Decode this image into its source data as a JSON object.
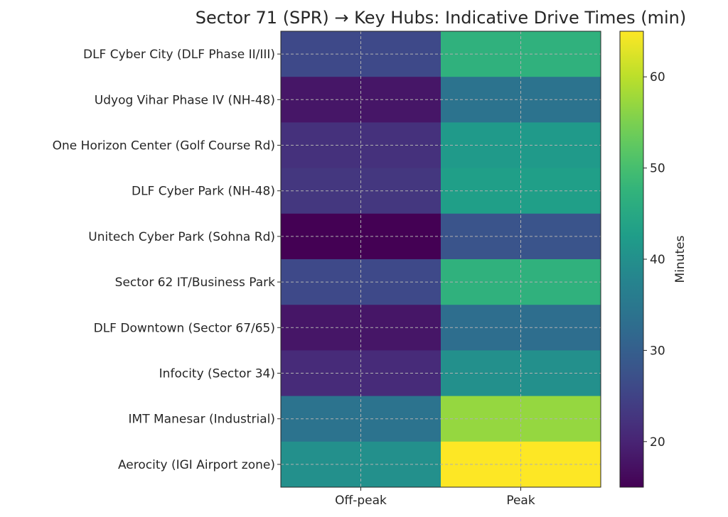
{
  "chart_data": {
    "type": "heatmap",
    "title": "Sector 71 (SPR) → Key Hubs: Indicative Drive Times (min)",
    "xlabel": "",
    "ylabel": "",
    "columns": [
      "Off-peak",
      "Peak"
    ],
    "rows": [
      "DLF Cyber City (DLF Phase II/III)",
      "Udyog Vihar Phase IV (NH-48)",
      "One Horizon Center (Golf Course Rd)",
      "DLF Cyber Park (NH-48)",
      "Unitech Cyber Park (Sohna Rd)",
      "Sector 62 IT/Business Park",
      "DLF Downtown (Sector 67/65)",
      "Infocity (Sector 34)",
      "IMT Manesar (Industrial)",
      "Aerocity (IGI Airport zone)"
    ],
    "values": [
      [
        26,
        47
      ],
      [
        18,
        34
      ],
      [
        22,
        42
      ],
      [
        23,
        43
      ],
      [
        15,
        28
      ],
      [
        26,
        47
      ],
      [
        18,
        33
      ],
      [
        21,
        40
      ],
      [
        34,
        57
      ],
      [
        40,
        65
      ]
    ],
    "colormap": "viridis",
    "colorbar": {
      "label": "Minutes",
      "range": [
        15,
        65
      ],
      "ticks": [
        "20",
        "30",
        "40",
        "50",
        "60"
      ]
    },
    "grid": true
  }
}
